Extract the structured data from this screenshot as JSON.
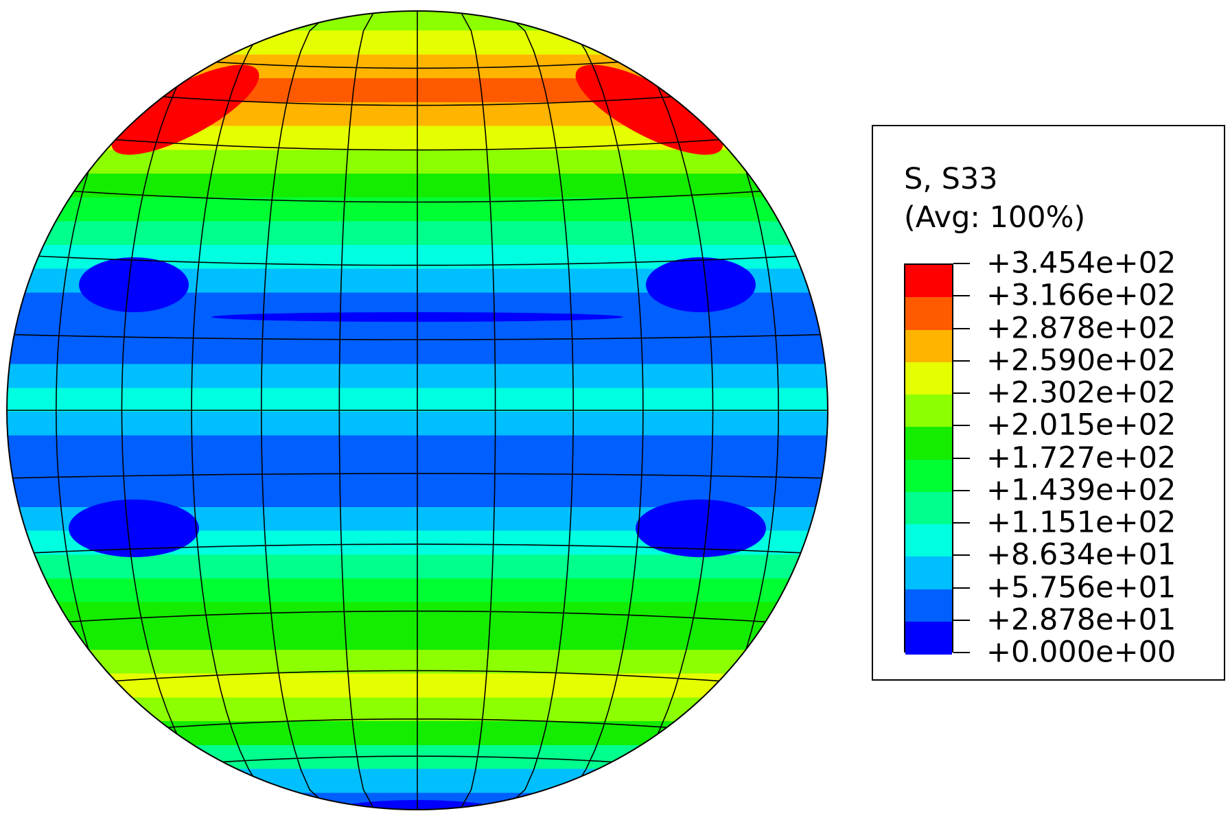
{
  "legend": {
    "title_line1": "S, S33",
    "title_line2": "(Avg: 100%)",
    "levels": [
      "+3.454e+02",
      "+3.166e+02",
      "+2.878e+02",
      "+2.590e+02",
      "+2.302e+02",
      "+2.015e+02",
      "+1.727e+02",
      "+1.439e+02",
      "+1.151e+02",
      "+8.634e+01",
      "+5.756e+01",
      "+2.878e+01",
      "+0.000e+00"
    ],
    "band_colors_top_to_bottom": [
      "#ff0000",
      "#ff5a00",
      "#ffb400",
      "#e6ff00",
      "#8cff00",
      "#14ec00",
      "#00ff32",
      "#00ff8c",
      "#00ffe1",
      "#00bfff",
      "#005fff",
      "#0000ff"
    ]
  },
  "contour_field": {
    "variable": "S33",
    "pattern_top_to_bottom": [
      "#8cff00",
      "#e6ff00",
      "#ffb400",
      "#ff5a00",
      "#ffb400",
      "#e6ff00",
      "#8cff00",
      "#14ec00",
      "#00ff32",
      "#00ff8c",
      "#00ffe1",
      "#00bfff",
      "#005fff",
      "#005fff",
      "#005fff",
      "#00bfff",
      "#00ffe1",
      "#00bfff",
      "#005fff",
      "#005fff",
      "#005fff",
      "#00bfff",
      "#00ffe1",
      "#00ff8c",
      "#00ff32",
      "#14ec00",
      "#14ec00",
      "#8cff00",
      "#e6ff00",
      "#8cff00",
      "#14ec00",
      "#00ff8c",
      "#00bfff",
      "#005fff"
    ],
    "hot_spot_color": "#ff0000",
    "cold_spot_color": "#0000ff",
    "mesh_color": "#000000"
  }
}
